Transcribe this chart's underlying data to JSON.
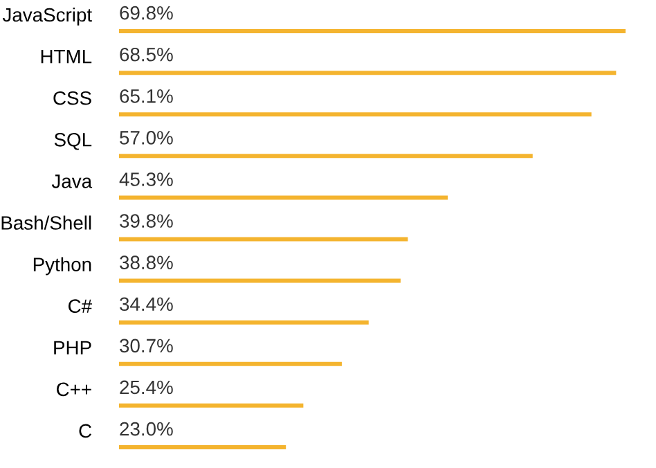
{
  "chart_data": {
    "type": "bar",
    "orientation": "horizontal",
    "categories": [
      "JavaScript",
      "HTML",
      "CSS",
      "SQL",
      "Java",
      "Bash/Shell",
      "Python",
      "C#",
      "PHP",
      "C++",
      "C"
    ],
    "values": [
      69.8,
      68.5,
      65.1,
      57.0,
      45.3,
      39.8,
      38.8,
      34.4,
      30.7,
      25.4,
      23.0
    ],
    "value_labels": [
      "69.8%",
      "68.5%",
      "65.1%",
      "57.0%",
      "45.3%",
      "39.8%",
      "38.8%",
      "34.4%",
      "30.7%",
      "25.4%",
      "23.0%"
    ],
    "color": "#f4b42f",
    "grid": false,
    "legend": false
  }
}
